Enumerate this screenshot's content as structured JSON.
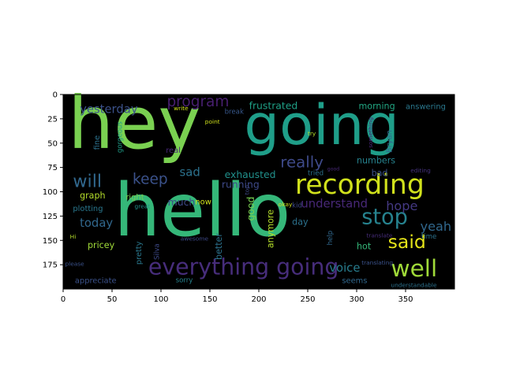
{
  "chart_data": {
    "type": "image",
    "kind": "word-cloud",
    "title": "",
    "xlabel": "",
    "ylabel": "",
    "xlim": [
      0,
      400
    ],
    "ylim": [
      200,
      0
    ],
    "x_ticks": [
      0,
      50,
      100,
      150,
      200,
      250,
      300,
      350
    ],
    "y_ticks": [
      0,
      25,
      50,
      75,
      100,
      125,
      150,
      175
    ],
    "background": "#000000",
    "words": [
      {
        "text": "hey",
        "x": 5,
        "y": 55,
        "size": 74,
        "color": "#7ad151"
      },
      {
        "text": "hello",
        "x": 52,
        "y": 145,
        "size": 75,
        "color": "#35b779"
      },
      {
        "text": "going",
        "x": 185,
        "y": 51,
        "size": 57,
        "color": "#1f9e89"
      },
      {
        "text": "recording",
        "x": 237,
        "y": 102,
        "size": 28,
        "color": "#d0e11c"
      },
      {
        "text": "everything going",
        "x": 87,
        "y": 185,
        "size": 23,
        "color": "#472d7b"
      },
      {
        "text": "stop",
        "x": 305,
        "y": 133,
        "size": 22,
        "color": "#26828e"
      },
      {
        "text": "well",
        "x": 335,
        "y": 187,
        "size": 24,
        "color": "#a0da39"
      },
      {
        "text": "said",
        "x": 332,
        "y": 158,
        "size": 19,
        "color": "#e5e419"
      },
      {
        "text": "really",
        "x": 222,
        "y": 75,
        "size": 16,
        "color": "#3e4a89"
      },
      {
        "text": "program",
        "x": 106,
        "y": 12,
        "size": 15,
        "color": "#481f70"
      },
      {
        "text": "yesterday",
        "x": 17,
        "y": 19,
        "size": 12,
        "color": "#3b528b"
      },
      {
        "text": "will",
        "x": 10,
        "y": 95,
        "size": 18,
        "color": "#31688e"
      },
      {
        "text": "keep",
        "x": 71,
        "y": 92,
        "size": 15,
        "color": "#3b528b"
      },
      {
        "text": "sad",
        "x": 119,
        "y": 84,
        "size": 12,
        "color": "#2c728e"
      },
      {
        "text": "voice",
        "x": 272,
        "y": 182,
        "size": 12,
        "color": "#287d8e"
      },
      {
        "text": "hope",
        "x": 330,
        "y": 119,
        "size": 13,
        "color": "#443983"
      },
      {
        "text": "yeah",
        "x": 365,
        "y": 140,
        "size": 13,
        "color": "#31688e"
      },
      {
        "text": "understand",
        "x": 243,
        "y": 116,
        "size": 12,
        "color": "#482878"
      },
      {
        "text": "today",
        "x": 17,
        "y": 136,
        "size": 12,
        "color": "#31688e"
      },
      {
        "text": "exhausted",
        "x": 165,
        "y": 86,
        "size": 10,
        "color": "#21918c"
      },
      {
        "text": "running",
        "x": 162,
        "y": 96,
        "size": 10,
        "color": "#3e4a89"
      },
      {
        "text": "frustrated",
        "x": 190,
        "y": 15,
        "size": 10,
        "color": "#1fa187"
      },
      {
        "text": "morning",
        "x": 302,
        "y": 15,
        "size": 9,
        "color": "#22a884"
      },
      {
        "text": "answering",
        "x": 350,
        "y": 15,
        "size": 8,
        "color": "#2a788e"
      },
      {
        "text": "numbers",
        "x": 300,
        "y": 71,
        "size": 9,
        "color": "#26828e"
      },
      {
        "text": "bad",
        "x": 315,
        "y": 84,
        "size": 9,
        "color": "#3b528b"
      },
      {
        "text": "tried",
        "x": 250,
        "y": 83,
        "size": 7,
        "color": "#2c728e"
      },
      {
        "text": "graph",
        "x": 17,
        "y": 107,
        "size": 9,
        "color": "#b5de2b"
      },
      {
        "text": "right",
        "x": 64,
        "y": 108,
        "size": 8,
        "color": "#7ad151"
      },
      {
        "text": "much",
        "x": 107,
        "y": 114,
        "size": 10,
        "color": "#3e4a89"
      },
      {
        "text": "plotting",
        "x": 10,
        "y": 120,
        "size": 8,
        "color": "#2a788e"
      },
      {
        "text": "pricey",
        "x": 25,
        "y": 158,
        "size": 9,
        "color": "#a0da39"
      },
      {
        "text": "appreciate",
        "x": 12,
        "y": 194,
        "size": 8,
        "color": "#3b528b"
      },
      {
        "text": "hot",
        "x": 300,
        "y": 159,
        "size": 9,
        "color": "#35b779"
      },
      {
        "text": "day",
        "x": 234,
        "y": 134,
        "size": 9,
        "color": "#2c728e"
      },
      {
        "text": "kid",
        "x": 234,
        "y": 116,
        "size": 7,
        "color": "#3e4a89"
      },
      {
        "text": "okay",
        "x": 220,
        "y": 115,
        "size": 6,
        "color": "#d0e11c"
      },
      {
        "text": "seems",
        "x": 285,
        "y": 194,
        "size": 8,
        "color": "#31688e"
      },
      {
        "text": "sorry",
        "x": 115,
        "y": 193,
        "size": 7,
        "color": "#26828e"
      },
      {
        "text": "now",
        "x": 135,
        "y": 113,
        "size": 8,
        "color": "#d0e11c"
      },
      {
        "text": "time",
        "x": 366,
        "y": 148,
        "size": 7,
        "color": "#2c728e"
      },
      {
        "text": "real",
        "x": 105,
        "y": 60,
        "size": 8,
        "color": "#482878"
      },
      {
        "text": "fine",
        "x": 37,
        "y": 57,
        "size": 8,
        "color": "#2c728e",
        "rotate": -90
      },
      {
        "text": "gorgeous",
        "x": 60,
        "y": 60,
        "size": 7,
        "color": "#1f9e89",
        "rotate": -90
      },
      {
        "text": "point",
        "x": 145,
        "y": 30,
        "size": 6,
        "color": "#d0e11c"
      },
      {
        "text": "break",
        "x": 165,
        "y": 20,
        "size": 7,
        "color": "#38588c"
      },
      {
        "text": "write",
        "x": 113,
        "y": 16,
        "size": 6,
        "color": "#d0e11c"
      },
      {
        "text": "try",
        "x": 250,
        "y": 42,
        "size": 6,
        "color": "#b5de2b"
      },
      {
        "text": "Bryan",
        "x": 336,
        "y": 60,
        "size": 8,
        "color": "#31688e",
        "rotate": -90
      },
      {
        "text": "something",
        "x": 316,
        "y": 55,
        "size": 6,
        "color": "#482878",
        "rotate": -90
      },
      {
        "text": "editing",
        "x": 355,
        "y": 80,
        "size": 6,
        "color": "#46337e"
      },
      {
        "text": "good",
        "x": 195,
        "y": 130,
        "size": 10,
        "color": "#7ad151",
        "rotate": -90
      },
      {
        "text": "anymore",
        "x": 215,
        "y": 158,
        "size": 9,
        "color": "#b5de2b",
        "rotate": -90
      },
      {
        "text": "better",
        "x": 162,
        "y": 170,
        "size": 9,
        "color": "#2c728e",
        "rotate": -90
      },
      {
        "text": "pretty",
        "x": 80,
        "y": 175,
        "size": 8,
        "color": "#2a788e",
        "rotate": -90
      },
      {
        "text": "Silva",
        "x": 98,
        "y": 170,
        "size": 7,
        "color": "#3e4a89",
        "rotate": -90
      },
      {
        "text": "awesome",
        "x": 120,
        "y": 150,
        "size": 6,
        "color": "#3e4a89"
      },
      {
        "text": "help",
        "x": 275,
        "y": 155,
        "size": 7,
        "color": "#31688e",
        "rotate": -90
      },
      {
        "text": "translate",
        "x": 310,
        "y": 147,
        "size": 6,
        "color": "#472d7b"
      },
      {
        "text": "translating",
        "x": 305,
        "y": 175,
        "size": 6,
        "color": "#3b528b"
      },
      {
        "text": "understandable",
        "x": 335,
        "y": 198,
        "size": 6,
        "color": "#2c728e"
      },
      {
        "text": "top",
        "x": 190,
        "y": 103,
        "size": 6,
        "color": "#3e4a89",
        "rotate": -90
      },
      {
        "text": "Hi",
        "x": 7,
        "y": 148,
        "size": 6,
        "color": "#b5de2b"
      },
      {
        "text": "please",
        "x": 2,
        "y": 176,
        "size": 6,
        "color": "#3b528b"
      },
      {
        "text": "great",
        "x": 73,
        "y": 117,
        "size": 6,
        "color": "#21918c"
      },
      {
        "text": "good",
        "x": 270,
        "y": 78,
        "size": 5,
        "color": "#482878"
      }
    ]
  }
}
